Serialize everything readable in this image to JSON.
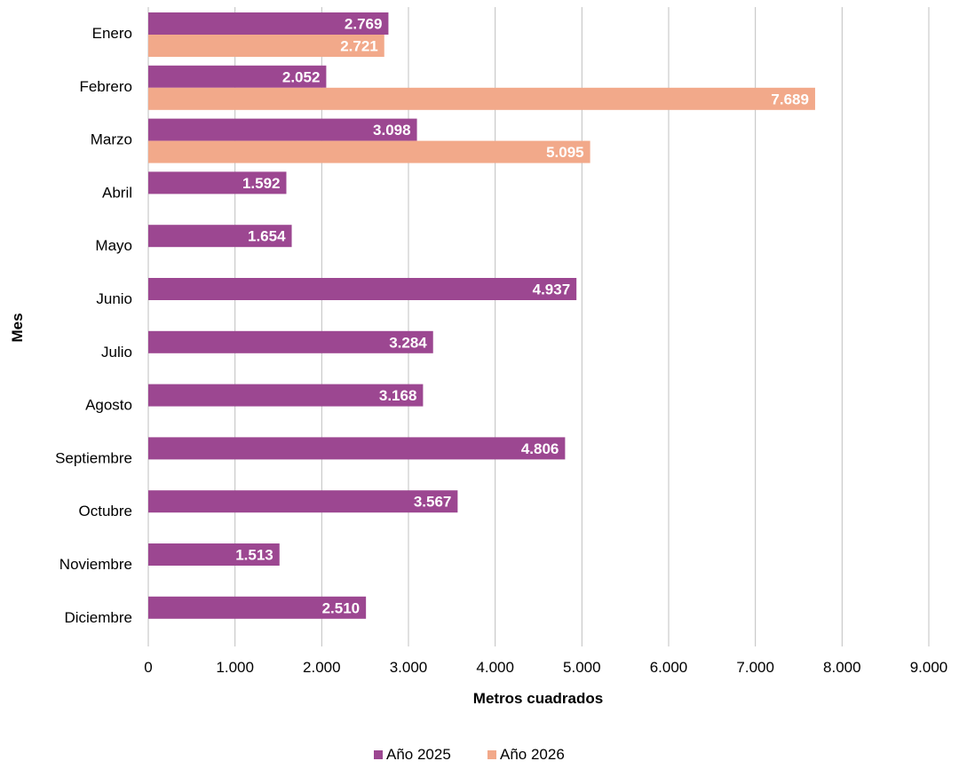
{
  "chart_data": {
    "type": "bar",
    "orientation": "horizontal",
    "categories": [
      "Enero",
      "Febrero",
      "Marzo",
      "Abril",
      "Mayo",
      "Junio",
      "Julio",
      "Agosto",
      "Septiembre",
      "Octubre",
      "Noviembre",
      "Diciembre"
    ],
    "series": [
      {
        "name": "Año 2025",
        "color": "#9c4791",
        "values": [
          2769,
          2052,
          3098,
          1592,
          1654,
          4937,
          3284,
          3168,
          4806,
          3567,
          1513,
          2510
        ],
        "labels": [
          "2.769",
          "2.052",
          "3.098",
          "1.592",
          "1.654",
          "4.937",
          "3.284",
          "3.168",
          "4.806",
          "3.567",
          "1.513",
          "2.510"
        ]
      },
      {
        "name": "Año 2026",
        "color": "#f2a98a",
        "values": [
          2721,
          7689,
          5095,
          null,
          null,
          null,
          null,
          null,
          null,
          null,
          null,
          null
        ],
        "labels": [
          "2.721",
          "7.689",
          "5.095",
          "",
          "",
          "",
          "",
          "",
          "",
          "",
          "",
          ""
        ]
      }
    ],
    "xlabel": "Metros cuadrados",
    "ylabel": "Mes",
    "xlim": [
      0,
      9000
    ],
    "xticks": [
      0,
      1000,
      2000,
      3000,
      4000,
      5000,
      6000,
      7000,
      8000,
      9000
    ],
    "xtick_labels": [
      "0",
      "1.000",
      "2.000",
      "3.000",
      "4.000",
      "5.000",
      "6.000",
      "7.000",
      "8.000",
      "9.000"
    ],
    "grid": "vertical",
    "legend": "bottom"
  }
}
